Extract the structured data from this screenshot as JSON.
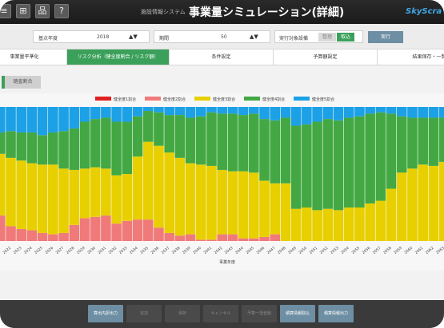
{
  "titlebar": {
    "subtitle": "施設情報システム",
    "title": "事業量シミュレーション(詳細)",
    "logo": "SkyScra",
    "help_label": "?"
  },
  "params": {
    "base_year_label": "基点年度",
    "base_year_value": "2018",
    "period_label": "期間",
    "period_value": "50",
    "exec_target_label": "実行対象設備",
    "exec_off_label": "整理",
    "exec_on_label": "取込",
    "run_label": "実行"
  },
  "tabs": [
    {
      "label": "事業量平準化",
      "active": false
    },
    {
      "label": "リスク分析（健全度割合 / リスク額）",
      "active": true
    },
    {
      "label": "条件設定",
      "active": false
    },
    {
      "label": "予算額設定",
      "active": false
    },
    {
      "label": "結果保存・一覧",
      "active": false
    }
  ],
  "subbar": {
    "button_label": "踏査割合"
  },
  "chart_data": {
    "type": "area",
    "stacked": true,
    "xlabel": "事業年度",
    "ylabel": "",
    "ylim": [
      0,
      100
    ],
    "x": [
      "2021",
      "2022",
      "2023",
      "2024",
      "2025",
      "2026",
      "2027",
      "2028",
      "2029",
      "2030",
      "2031",
      "2032",
      "2033",
      "2034",
      "2035",
      "2036",
      "2037",
      "2038",
      "2039",
      "2040",
      "2041",
      "2042",
      "2043",
      "2044",
      "2045",
      "2046",
      "2047",
      "2048",
      "2049",
      "2050",
      "2051",
      "2052",
      "2053",
      "2054",
      "2055",
      "2056",
      "2057",
      "2058",
      "2059",
      "2060",
      "2061",
      "2062",
      "2063"
    ],
    "legend_position": "top-center",
    "series": [
      {
        "name": "健全度1割合",
        "color": "#e02020",
        "values": [
          0,
          0,
          0,
          0,
          0,
          0,
          0,
          0,
          0,
          0,
          0,
          0,
          0,
          0,
          0,
          0,
          0,
          0,
          0,
          0,
          0,
          0,
          0,
          0,
          0,
          0,
          0,
          0,
          0,
          0,
          0,
          0,
          0,
          0,
          0,
          0,
          0,
          0,
          0,
          0,
          0,
          0,
          0
        ]
      },
      {
        "name": "健全度2割合",
        "color": "#f07a7a",
        "values": [
          19,
          11,
          9,
          8,
          6,
          5,
          6,
          12,
          17,
          18,
          19,
          13,
          15,
          16,
          16,
          10,
          6,
          4,
          5,
          1,
          1,
          5,
          5,
          2,
          2,
          3,
          5,
          0,
          0,
          0,
          0,
          0,
          0,
          0,
          0,
          0,
          0,
          0,
          0,
          0,
          0,
          0,
          0
        ]
      },
      {
        "name": "健全度3割合",
        "color": "#e8cf00",
        "values": [
          46,
          51,
          51,
          50,
          51,
          52,
          48,
          41,
          37,
          37,
          35,
          36,
          35,
          47,
          58,
          61,
          60,
          58,
          53,
          56,
          55,
          48,
          47,
          50,
          49,
          42,
          38,
          43,
          24,
          25,
          23,
          24,
          23,
          25,
          25,
          28,
          30,
          39,
          51,
          54,
          57,
          56,
          59
        ]
      },
      {
        "name": "健全度4割合",
        "color": "#43a843",
        "values": [
          16,
          20,
          21,
          23,
          22,
          24,
          28,
          31,
          35,
          36,
          38,
          40,
          39,
          30,
          23,
          25,
          28,
          32,
          34,
          36,
          40,
          42,
          43,
          42,
          44,
          46,
          47,
          49,
          62,
          62,
          66,
          67,
          67,
          67,
          68,
          67,
          66,
          56,
          42,
          38,
          35,
          36,
          33
        ]
      },
      {
        "name": "健全度5割合",
        "color": "#1ca0e6",
        "values": [
          19,
          18,
          19,
          19,
          21,
          19,
          18,
          16,
          11,
          9,
          8,
          11,
          11,
          7,
          3,
          4,
          6,
          6,
          8,
          7,
          4,
          5,
          5,
          6,
          5,
          9,
          10,
          8,
          14,
          13,
          11,
          9,
          10,
          8,
          7,
          5,
          4,
          5,
          7,
          8,
          8,
          8,
          8
        ]
      }
    ]
  },
  "bottombar": {
    "buttons": [
      {
        "label": "算出内訳出力",
        "enabled": true
      },
      {
        "label": "追加",
        "enabled": false
      },
      {
        "label": "保存",
        "enabled": false
      },
      {
        "label": "キャンセル",
        "enabled": false
      },
      {
        "label": "予算一括登録",
        "enabled": false
      },
      {
        "label": "積算情報取込",
        "enabled": true
      },
      {
        "label": "積算情報出力",
        "enabled": true
      }
    ]
  }
}
